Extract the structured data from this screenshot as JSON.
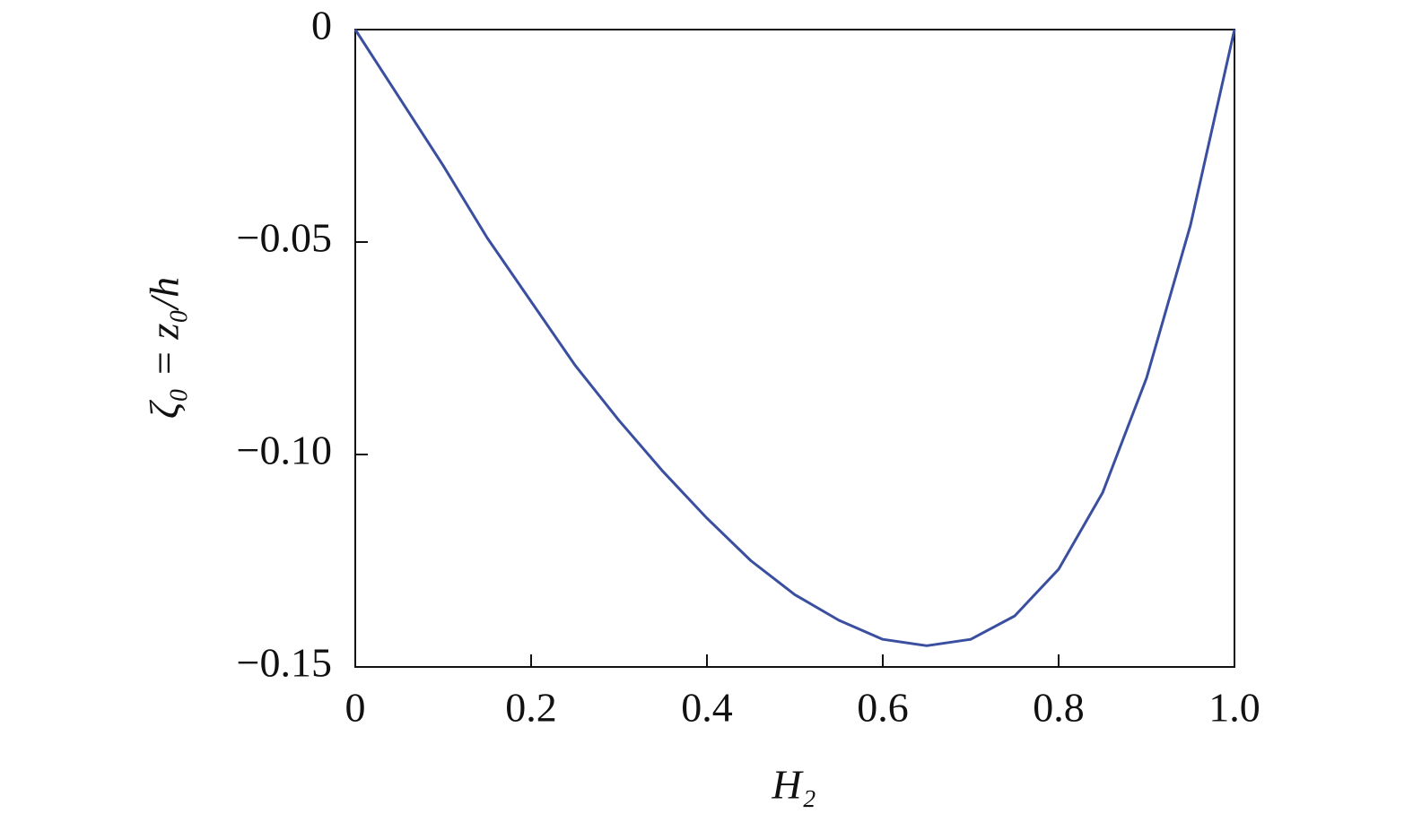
{
  "chart_data": {
    "type": "line",
    "x_label": "H₂",
    "y_label": "ζ₀ = z₀/h",
    "x": [
      0,
      0.05,
      0.1,
      0.15,
      0.2,
      0.25,
      0.3,
      0.35,
      0.4,
      0.45,
      0.5,
      0.55,
      0.6,
      0.65,
      0.7,
      0.75,
      0.8,
      0.85,
      0.9,
      0.95,
      1.0
    ],
    "values": [
      0,
      -0.016,
      -0.032,
      -0.049,
      -0.064,
      -0.079,
      -0.092,
      -0.104,
      -0.115,
      -0.125,
      -0.133,
      -0.139,
      -0.1435,
      -0.145,
      -0.1435,
      -0.138,
      -0.127,
      -0.109,
      -0.082,
      -0.046,
      0
    ],
    "color": "#3a4fa0",
    "xlim": [
      0,
      1
    ],
    "xticks": [
      0,
      0.2,
      0.4,
      0.6,
      0.8,
      {
        "value": 1,
        "label": "1.0"
      }
    ],
    "ylim": [
      -0.15,
      0
    ],
    "yticks": [
      0,
      {
        "value": -0.05,
        "label": "−0.05"
      },
      {
        "value": -0.1,
        "label": "−0.10"
      },
      {
        "value": -0.15,
        "label": "−0.15"
      }
    ],
    "grid": false
  }
}
